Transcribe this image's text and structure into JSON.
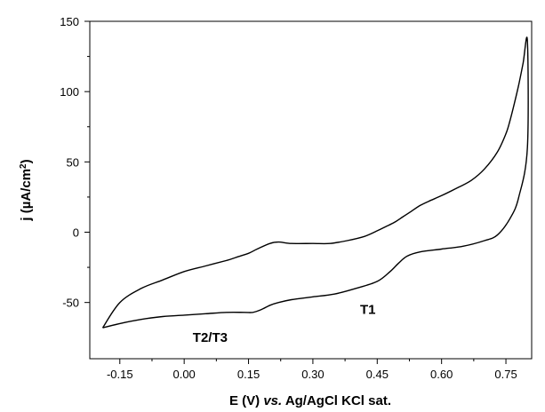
{
  "chart_data": {
    "type": "line",
    "title": "",
    "xlabel": {
      "pre": "E (V) ",
      "italic": "vs.",
      "post": " Ag/AgCl KCl sat."
    },
    "ylabel": {
      "main": "j (µA/cm",
      "sup": "2",
      "close": ")"
    },
    "xlim": [
      -0.22,
      0.81
    ],
    "ylim": [
      -90,
      150
    ],
    "xticks": [
      -0.15,
      0.0,
      0.15,
      0.3,
      0.45,
      0.6,
      0.75
    ],
    "xtick_labels": [
      "-0.15",
      "0.00",
      "0.15",
      "0.30",
      "0.45",
      "0.60",
      "0.75"
    ],
    "yticks": [
      -50,
      0,
      50,
      100,
      150
    ],
    "ytick_labels": [
      "-50",
      "0",
      "50",
      "100",
      "150"
    ],
    "grid": false,
    "line_color": "#000000",
    "series": [
      {
        "x": [
          -0.19,
          -0.15,
          -0.1,
          -0.05,
          0.0,
          0.05,
          0.1,
          0.14,
          0.16,
          0.18,
          0.2,
          0.22,
          0.25,
          0.3,
          0.35,
          0.4,
          0.45,
          0.48,
          0.5,
          0.52,
          0.55,
          0.6,
          0.65,
          0.7,
          0.73,
          0.76,
          0.78,
          0.8,
          0.8,
          0.79,
          0.78,
          0.77,
          0.76,
          0.75,
          0.73,
          0.7,
          0.67,
          0.64,
          0.6,
          0.57,
          0.55,
          0.53,
          0.51,
          0.49,
          0.47,
          0.45,
          0.42,
          0.38,
          0.34,
          0.3,
          0.25,
          0.22,
          0.2,
          0.17,
          0.15,
          0.12,
          0.1,
          0.05,
          0.0,
          -0.05,
          -0.1,
          -0.15,
          -0.19
        ],
        "y": [
          -68,
          -65,
          -62,
          -60,
          -59,
          -58,
          -57,
          -57,
          -57,
          -55,
          -52,
          -50,
          -48,
          -46,
          -44,
          -40,
          -35,
          -28,
          -22,
          -17,
          -14,
          -12,
          -10,
          -6,
          -2,
          10,
          25,
          60,
          136,
          120,
          105,
          92,
          80,
          70,
          57,
          45,
          37,
          32,
          26,
          22,
          19,
          15,
          11,
          7,
          4,
          1,
          -3,
          -6,
          -8,
          -8,
          -8,
          -7,
          -8,
          -12,
          -15,
          -18,
          -20,
          -24,
          -28,
          -34,
          -40,
          -50,
          -68
        ]
      }
    ],
    "annotations": [
      {
        "text": "T1",
        "x": 0.41,
        "y": -58
      },
      {
        "text": "T2/T3",
        "x": 0.02,
        "y": -78
      }
    ]
  }
}
